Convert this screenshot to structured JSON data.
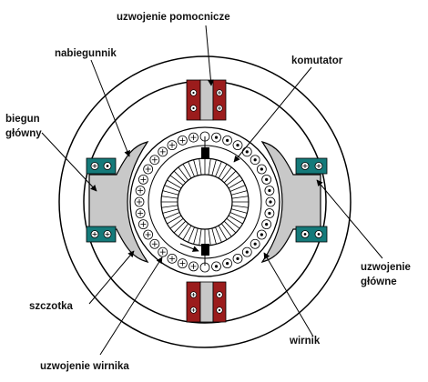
{
  "labels": {
    "auxiliary_winding": "uzwojenie pomocnicze",
    "pole_shoe": "nabiegunnik",
    "commutator": "komutator",
    "main_pole_line1": "biegun",
    "main_pole_line2": "główny",
    "main_winding_line1": "uzwojenie",
    "main_winding_line2": "główne",
    "brush": "szczotka",
    "rotor": "wirnik",
    "rotor_winding": "uzwojenie wirnika"
  },
  "colors": {
    "outline": "#000000",
    "pole_gray": "#c8c8c8",
    "aux_winding_red": "#9b1c1c",
    "main_winding_teal": "#157a7a",
    "background": "#ffffff"
  },
  "icons": {
    "conductor_plus": "circle-plus",
    "conductor_dot": "circle-dot",
    "brush": "black-rectangle"
  }
}
